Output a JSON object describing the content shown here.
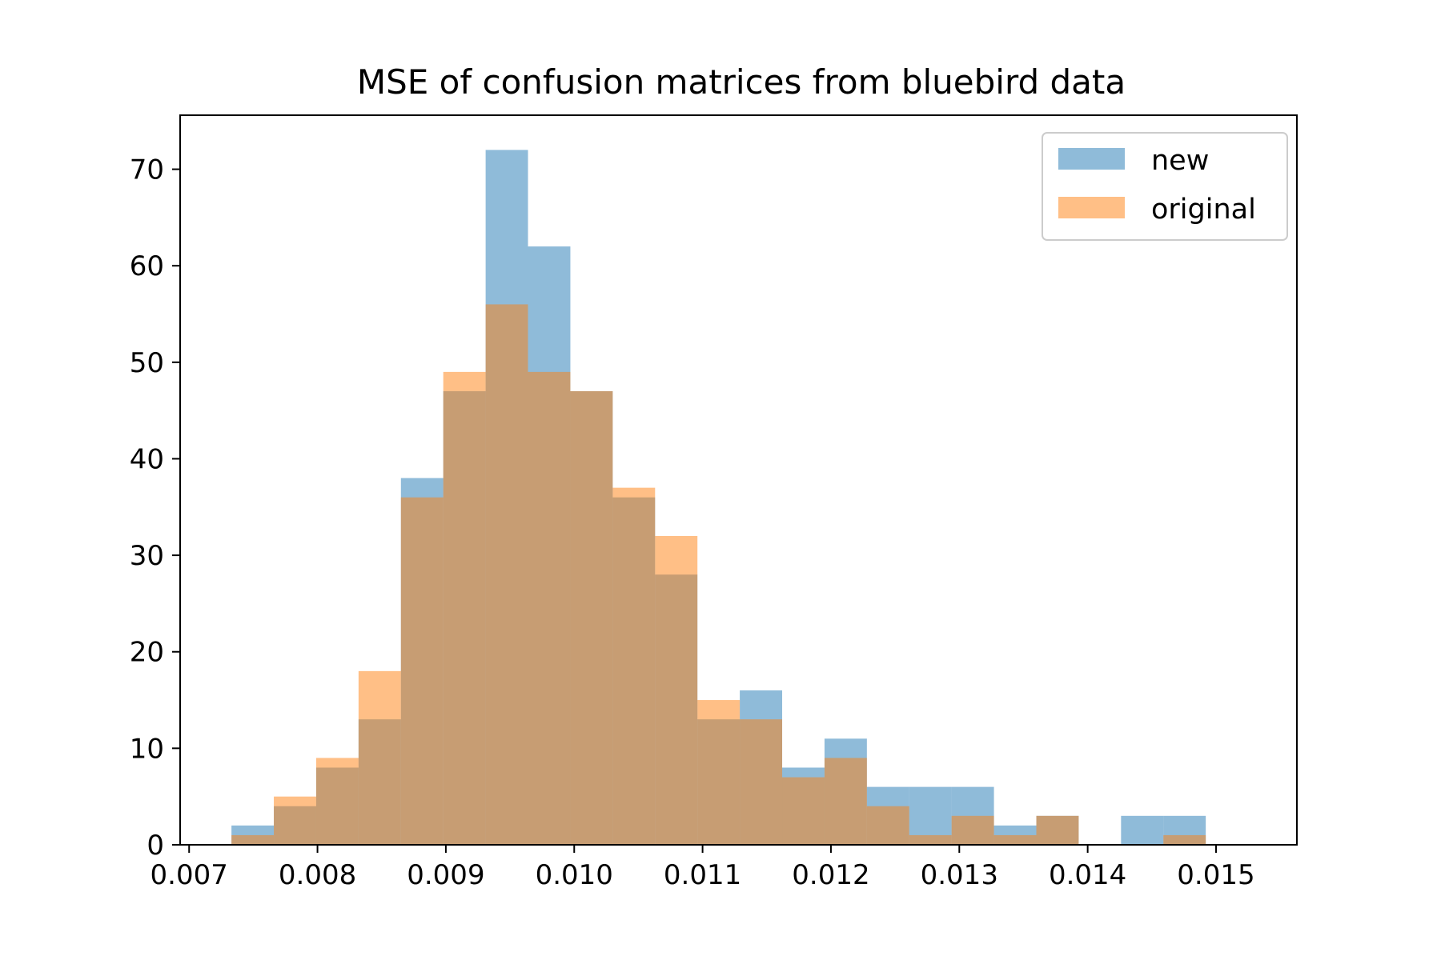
{
  "chart_data": {
    "type": "bar",
    "subtype": "histogram-overlay",
    "title": "MSE of confusion matrices from bluebird data",
    "xlabel": "",
    "ylabel": "",
    "xlim": [
      0.00693,
      0.01563
    ],
    "ylim": [
      0,
      75.6
    ],
    "xticks": [
      0.007,
      0.008,
      0.009,
      0.01,
      0.011,
      0.012,
      0.013,
      0.014,
      0.015
    ],
    "xtick_labels": [
      "0.007",
      "0.008",
      "0.009",
      "0.010",
      "0.011",
      "0.012",
      "0.013",
      "0.014",
      "0.015"
    ],
    "yticks": [
      0,
      10,
      20,
      30,
      40,
      50,
      60,
      70
    ],
    "ytick_labels": [
      "0",
      "10",
      "20",
      "30",
      "40",
      "50",
      "60",
      "70"
    ],
    "grid": false,
    "legend": {
      "position": "top-right"
    },
    "bin_edges": [
      0.00733,
      0.00766,
      0.00799,
      0.00832,
      0.00865,
      0.00898,
      0.00931,
      0.00964,
      0.00997,
      0.0103,
      0.01063,
      0.01096,
      0.01129,
      0.01162,
      0.01195,
      0.01228,
      0.01261,
      0.01294,
      0.01327,
      0.0136,
      0.01393,
      0.01426,
      0.01459,
      0.01492
    ],
    "series": [
      {
        "name": "new",
        "color": "#1f77b4",
        "alpha": 0.5,
        "counts": [
          2,
          4,
          8,
          13,
          38,
          47,
          72,
          62,
          47,
          36,
          28,
          13,
          16,
          8,
          11,
          6,
          6,
          6,
          2,
          3,
          0,
          3,
          3
        ]
      },
      {
        "name": "original",
        "color": "#ff7f0e",
        "alpha": 0.5,
        "bin_edges": [
          0.00733,
          0.00766,
          0.00799,
          0.00832,
          0.00865,
          0.00898,
          0.00931,
          0.00964,
          0.00997,
          0.0103,
          0.01063,
          0.01096,
          0.01129,
          0.01162,
          0.01195,
          0.01228,
          0.01261,
          0.01294,
          0.01327,
          0.0136,
          0.01393,
          0.01426,
          0.01459,
          0.01492
        ],
        "counts": [
          1,
          5,
          9,
          18,
          36,
          49,
          56,
          49,
          47,
          37,
          32,
          15,
          13,
          7,
          9,
          4,
          1,
          3,
          1,
          3,
          0,
          0,
          1
        ]
      }
    ]
  }
}
